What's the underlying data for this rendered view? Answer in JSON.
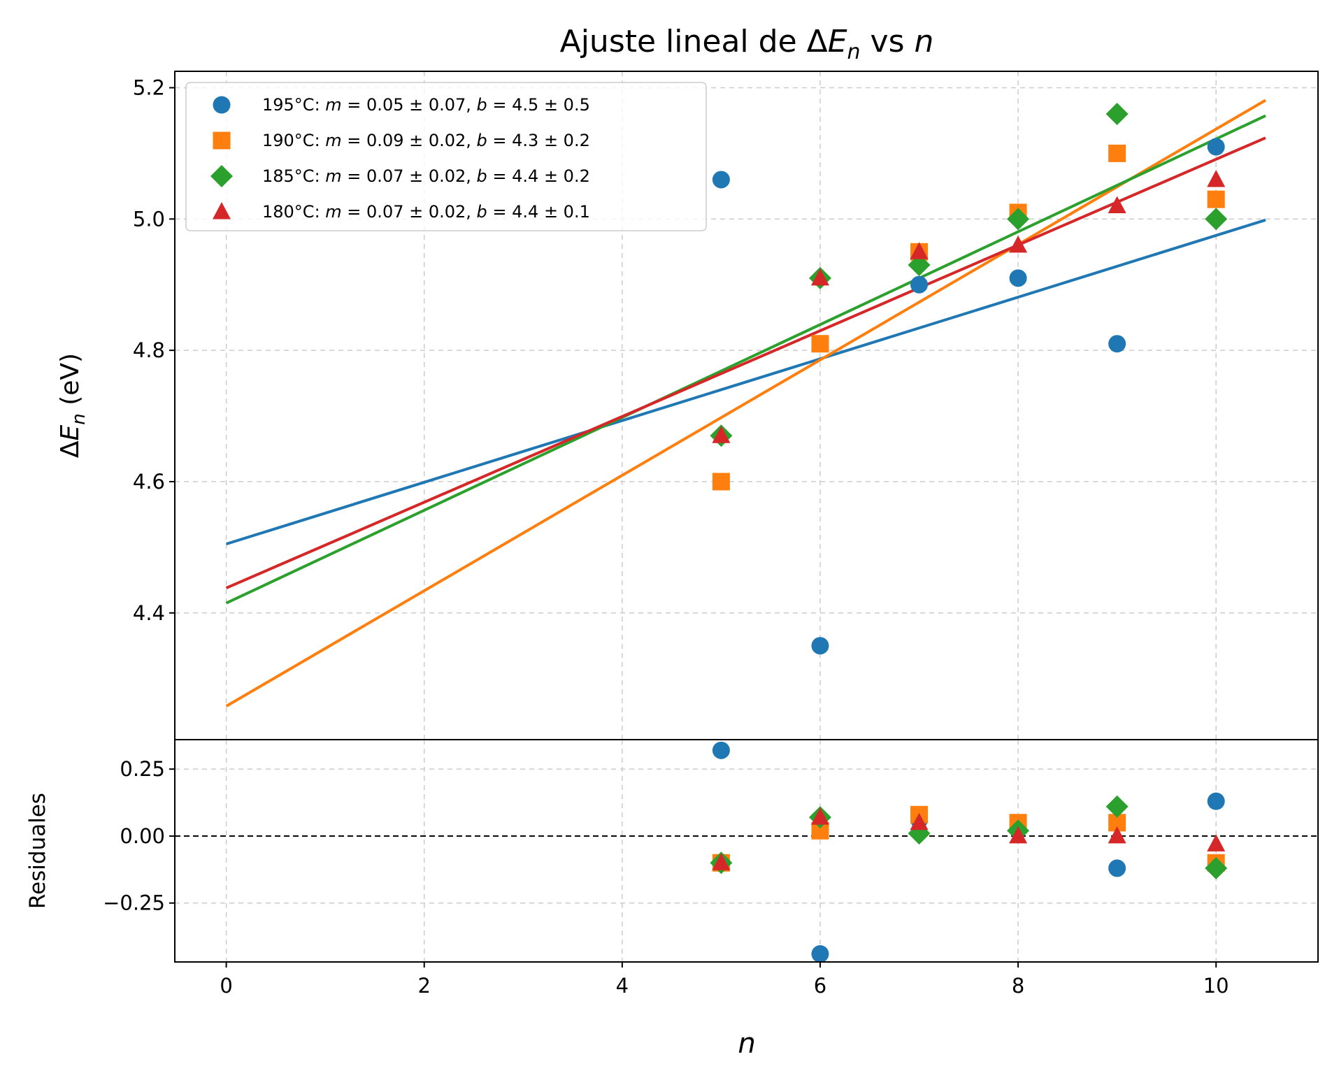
{
  "chart_data": [
    {
      "type": "scatter",
      "title": "Ajuste lineal de ΔEₙ vs n",
      "ylabel": "ΔEₙ (eV)",
      "xlim": [
        -0.52,
        11.03
      ],
      "ylim": [
        4.207,
        5.225
      ],
      "x_ticks": [
        0,
        2,
        4,
        6,
        8,
        10
      ],
      "y_ticks": [
        4.4,
        4.6,
        4.8,
        5.0,
        5.2
      ],
      "y_tick_labels": [
        "4.4",
        "4.6",
        "4.8",
        "5.0",
        "5.2"
      ],
      "grid": true,
      "legend_position": "top-left",
      "series": [
        {
          "name": "195°C: m = 0.05 ± 0.07, b = 4.5 ± 0.5",
          "marker": "circle",
          "color": "#1f77b4",
          "x": [
            5,
            6,
            7,
            8,
            9,
            10
          ],
          "y": [
            5.06,
            4.35,
            4.9,
            4.91,
            4.81,
            5.11
          ],
          "fit": {
            "slope": 0.047,
            "intercept": 4.505,
            "x_range": [
              0,
              10.5
            ]
          }
        },
        {
          "name": "190°C: m = 0.09 ± 0.02, b = 4.3 ± 0.2",
          "marker": "square",
          "color": "#ff7f0e",
          "x": [
            5,
            6,
            7,
            8,
            9,
            10
          ],
          "y": [
            4.6,
            4.81,
            4.95,
            5.01,
            5.1,
            5.03
          ],
          "fit": {
            "slope": 0.0879,
            "intercept": 4.258,
            "x_range": [
              0,
              10.5
            ]
          }
        },
        {
          "name": "185°C: m = 0.07 ± 0.02, b = 4.4 ± 0.2",
          "marker": "diamond",
          "color": "#2ca02c",
          "x": [
            5,
            6,
            7,
            8,
            9,
            10
          ],
          "y": [
            4.67,
            4.91,
            4.93,
            5.0,
            5.16,
            5.0
          ],
          "fit": {
            "slope": 0.0707,
            "intercept": 4.415,
            "x_range": [
              0,
              10.5
            ]
          }
        },
        {
          "name": "180°C: m = 0.07 ± 0.02, b = 4.4 ± 0.1",
          "marker": "triangle",
          "color": "#d62728",
          "x": [
            5,
            6,
            7,
            8,
            9,
            10
          ],
          "y": [
            4.67,
            4.91,
            4.95,
            4.96,
            5.02,
            5.06
          ],
          "fit": {
            "slope": 0.0653,
            "intercept": 4.438,
            "x_range": [
              0,
              10.5
            ]
          }
        }
      ]
    },
    {
      "type": "scatter",
      "ylabel": "Residuales",
      "xlabel": "n",
      "xlim": [
        -0.52,
        11.03
      ],
      "ylim": [
        -0.47,
        0.36
      ],
      "x_ticks": [
        0,
        2,
        4,
        6,
        8,
        10
      ],
      "x_tick_labels": [
        "0",
        "2",
        "4",
        "6",
        "8",
        "10"
      ],
      "y_ticks": [
        -0.25,
        0.0,
        0.25
      ],
      "y_tick_labels": [
        "−0.25",
        "0.00",
        "0.25"
      ],
      "grid": true,
      "reference_line": {
        "y": 0,
        "style": "dashed",
        "color": "#000000"
      },
      "series": [
        {
          "marker": "circle",
          "color": "#1f77b4",
          "x": [
            5,
            6,
            7,
            8,
            9,
            10
          ],
          "y": [
            0.32,
            -0.44,
            0.06,
            0.03,
            -0.12,
            0.13
          ]
        },
        {
          "marker": "square",
          "color": "#ff7f0e",
          "x": [
            5,
            6,
            7,
            8,
            9,
            10
          ],
          "y": [
            -0.1,
            0.02,
            0.08,
            0.05,
            0.05,
            -0.1
          ]
        },
        {
          "marker": "diamond",
          "color": "#2ca02c",
          "x": [
            5,
            6,
            7,
            8,
            9,
            10
          ],
          "y": [
            -0.1,
            0.07,
            0.01,
            0.02,
            0.11,
            -0.12
          ]
        },
        {
          "marker": "triangle",
          "color": "#d62728",
          "x": [
            5,
            6,
            7,
            8,
            9,
            10
          ],
          "y": [
            -0.1,
            0.07,
            0.05,
            0.0,
            0.0,
            -0.03
          ]
        }
      ]
    }
  ]
}
